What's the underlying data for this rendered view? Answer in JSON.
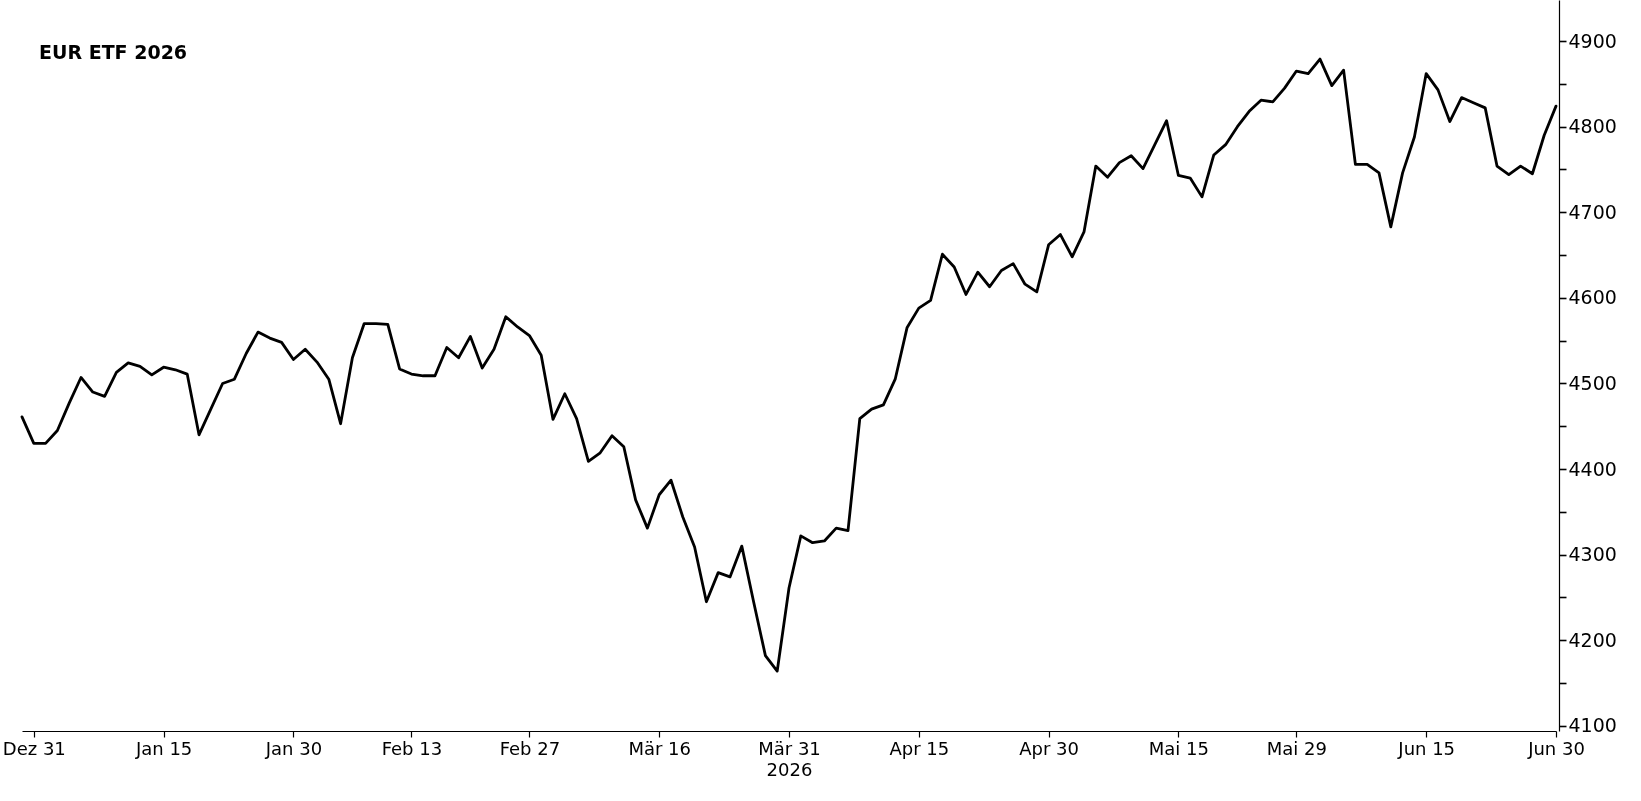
{
  "chart_data": {
    "type": "line",
    "title": "EUR ETF 2026",
    "xlabel": "2026",
    "categories": [
      null,
      "Dez 31",
      null,
      null,
      null,
      null,
      null,
      null,
      null,
      null,
      null,
      null,
      "Jan 15",
      null,
      null,
      null,
      null,
      null,
      null,
      null,
      null,
      null,
      null,
      "Jan 30",
      null,
      null,
      null,
      null,
      null,
      null,
      null,
      null,
      null,
      "Feb 13",
      null,
      null,
      null,
      null,
      null,
      null,
      null,
      null,
      null,
      "Feb 27",
      null,
      null,
      null,
      null,
      null,
      null,
      null,
      null,
      null,
      null,
      "Mär 16",
      null,
      null,
      null,
      null,
      null,
      null,
      null,
      null,
      null,
      null,
      "Mär 31",
      null,
      null,
      null,
      null,
      null,
      null,
      null,
      null,
      null,
      null,
      "Apr 15",
      null,
      null,
      null,
      null,
      null,
      null,
      null,
      null,
      null,
      null,
      "Apr 30",
      null,
      null,
      null,
      null,
      null,
      null,
      null,
      null,
      null,
      null,
      "Mai 15",
      null,
      null,
      null,
      null,
      null,
      null,
      null,
      null,
      null,
      "Mai 29",
      null,
      null,
      null,
      null,
      null,
      null,
      null,
      null,
      null,
      null,
      "Jun 15",
      null,
      null,
      null,
      null,
      null,
      null,
      null,
      null,
      null,
      null,
      "Jun 30"
    ],
    "values": [
      4461,
      4430,
      4430,
      4445,
      4477,
      4507,
      4490,
      4485,
      4513,
      4524,
      4520,
      4510,
      4519,
      4516,
      4511,
      4440,
      4470,
      4500,
      4505,
      4535,
      4560,
      4553,
      4548,
      4528,
      4540,
      4525,
      4505,
      4453,
      4530,
      4570,
      4570,
      4569,
      4517,
      4511,
      4509,
      4509,
      4542,
      4530,
      4555,
      4518,
      4540,
      4578,
      4566,
      4556,
      4533,
      4458,
      4488,
      4459,
      4409,
      4419,
      4439,
      4426,
      4364,
      4331,
      4370,
      4387,
      4344,
      4309,
      4245,
      4279,
      4274,
      4310,
      4245,
      4182,
      4164,
      4261,
      4322,
      4314,
      4316,
      4331,
      4328,
      4459,
      4470,
      4475,
      4505,
      4565,
      4588,
      4597,
      4651,
      4636,
      4604,
      4630,
      4613,
      4632,
      4640,
      4616,
      4607,
      4662,
      4674,
      4648,
      4677,
      4754,
      4741,
      4758,
      4766,
      4751,
      4779,
      4807,
      4743,
      4740,
      4718,
      4767,
      4779,
      4800,
      4818,
      4831,
      4829,
      4845,
      4865,
      4862,
      4879,
      4848,
      4866,
      4756,
      4756,
      4746,
      4683,
      4746,
      4788,
      4862,
      4843,
      4806,
      4834,
      4828,
      4822,
      4754,
      4744,
      4754,
      4745,
      4790,
      4824
    ],
    "color": "#000000",
    "ylim": [
      4094,
      4948
    ],
    "yticks": [
      4100,
      {
        "value": 4150,
        "label": null
      },
      4200,
      {
        "value": 4250,
        "label": null
      },
      4300,
      {
        "value": 4350,
        "label": null
      },
      4400,
      {
        "value": 4450,
        "label": null
      },
      4500,
      {
        "value": 4550,
        "label": null
      },
      4600,
      {
        "value": 4650,
        "label": null
      },
      4700,
      {
        "value": 4750,
        "label": null
      },
      4800,
      {
        "value": 4850,
        "label": null
      },
      4900
    ]
  }
}
